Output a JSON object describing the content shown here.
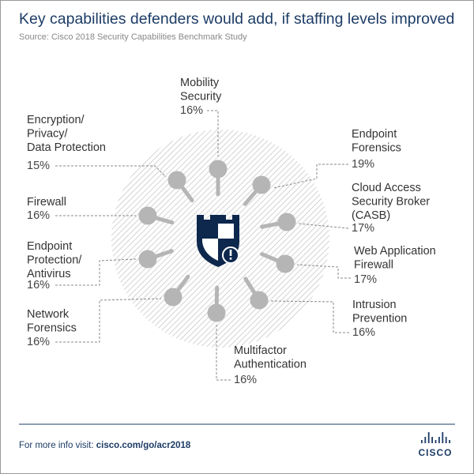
{
  "header": {
    "title": "Key capabilities defenders would add, if staffing levels improved",
    "source": "Source: Cisco 2018 Security Capabilities Benchmark Study"
  },
  "items": [
    {
      "label": [
        "Mobility",
        "Security"
      ],
      "value": "16%"
    },
    {
      "label": [
        "Endpoint",
        "Forensics"
      ],
      "value": "19%"
    },
    {
      "label": [
        "Cloud Access",
        "Security Broker",
        "(CASB)"
      ],
      "value": "17%"
    },
    {
      "label": [
        "Web Application",
        "Firewall"
      ],
      "value": "17%"
    },
    {
      "label": [
        "Intrusion",
        "Prevention"
      ],
      "value": "16%"
    },
    {
      "label": [
        "Multifactor",
        "Authentication"
      ],
      "value": "16%"
    },
    {
      "label": [
        "Network",
        "Forensics"
      ],
      "value": "16%"
    },
    {
      "label": [
        "Endpoint",
        "Protection/",
        "Antivirus"
      ],
      "value": "16%"
    },
    {
      "label": [
        "Firewall"
      ],
      "value": "16%"
    },
    {
      "label": [
        "Encryption/",
        "Privacy/",
        "Data Protection"
      ],
      "value": "15%"
    }
  ],
  "footer": {
    "prefix": "For more info visit: ",
    "link": "cisco.com/go/acr2018",
    "logo": "CISCO"
  }
}
